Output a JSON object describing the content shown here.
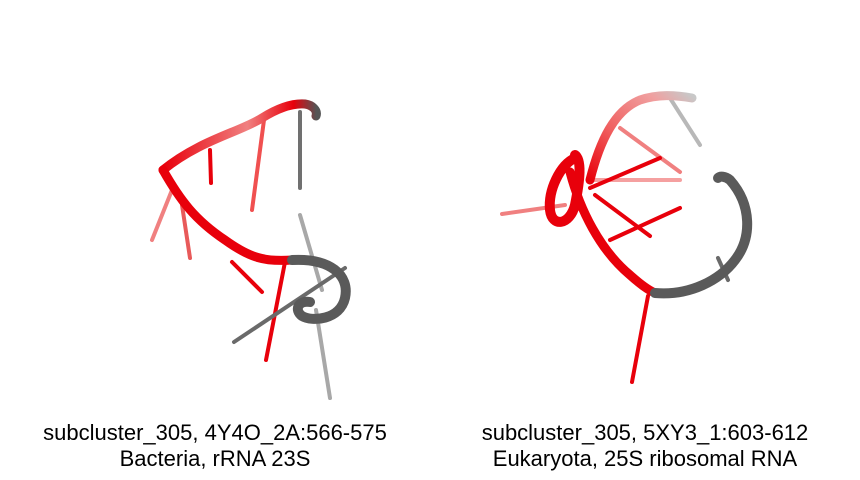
{
  "panels": [
    {
      "caption_line1": "subcluster_305, 4Y4O_2A:566-575",
      "caption_line2": "Bacteria, rRNA 23S"
    },
    {
      "caption_line1": "subcluster_305, 5XY3_1:603-612",
      "caption_line2": "Eukaryota, 25S ribosomal RNA"
    }
  ],
  "colors": {
    "highlight": "#e8000b",
    "highlight_light": "#f28080",
    "backbone_gray": "#5a5a5a",
    "base_gray": "#9a9a9a",
    "background": "#ffffff"
  }
}
